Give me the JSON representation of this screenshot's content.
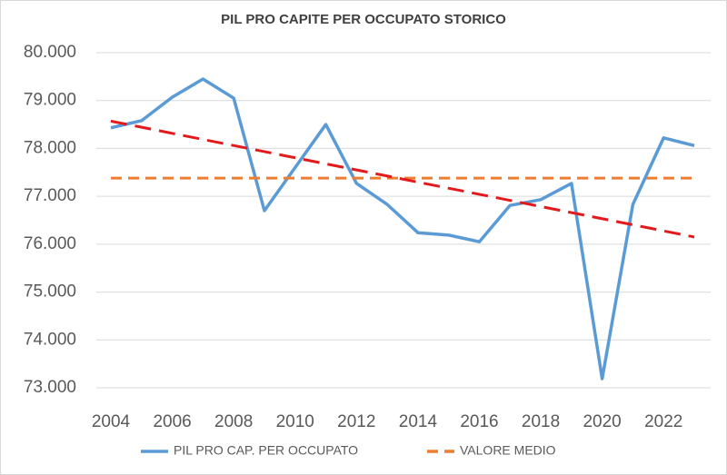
{
  "chart_data": {
    "type": "line",
    "title": "PIL PRO CAPITE PER OCCUPATO STORICO",
    "x": [
      2004,
      2005,
      2006,
      2007,
      2008,
      2009,
      2010,
      2011,
      2012,
      2013,
      2014,
      2015,
      2016,
      2017,
      2018,
      2019,
      2020,
      2021,
      2022,
      2023
    ],
    "series": [
      {
        "name": "PIL PRO CAP. PER OCCUPATO",
        "color": "#5b9bd5",
        "style": "solid",
        "values": [
          78430,
          78580,
          79070,
          79450,
          79050,
          76700,
          77600,
          78500,
          77270,
          76830,
          76240,
          76190,
          76050,
          76810,
          76930,
          77270,
          73190,
          76830,
          78220,
          78060
        ]
      },
      {
        "name": "VALORE MEDIO",
        "color": "#ed7d31",
        "style": "dashed",
        "values": [
          77380,
          77380,
          77380,
          77380,
          77380,
          77380,
          77380,
          77380,
          77380,
          77380,
          77380,
          77380,
          77380,
          77380,
          77380,
          77380,
          77380,
          77380,
          77380,
          77380
        ]
      }
    ],
    "trend": {
      "x": [
        2004,
        2023
      ],
      "values": [
        78570,
        76150
      ],
      "color": "#e31a1c"
    },
    "xlim": [
      2004,
      2023
    ],
    "xticks": [
      2004,
      2006,
      2008,
      2010,
      2012,
      2014,
      2016,
      2018,
      2020,
      2022
    ],
    "ylim": [
      73000,
      80000
    ],
    "yticks": [
      {
        "value": 73000,
        "label": "73.000"
      },
      {
        "value": 74000,
        "label": "74.000"
      },
      {
        "value": 75000,
        "label": "75.000"
      },
      {
        "value": 76000,
        "label": "76.000"
      },
      {
        "value": 77000,
        "label": "77.000"
      },
      {
        "value": 78000,
        "label": "78.000"
      },
      {
        "value": 79000,
        "label": "79.000"
      },
      {
        "value": 80000,
        "label": "80.000"
      }
    ],
    "grid": true,
    "legend": "bottom"
  }
}
